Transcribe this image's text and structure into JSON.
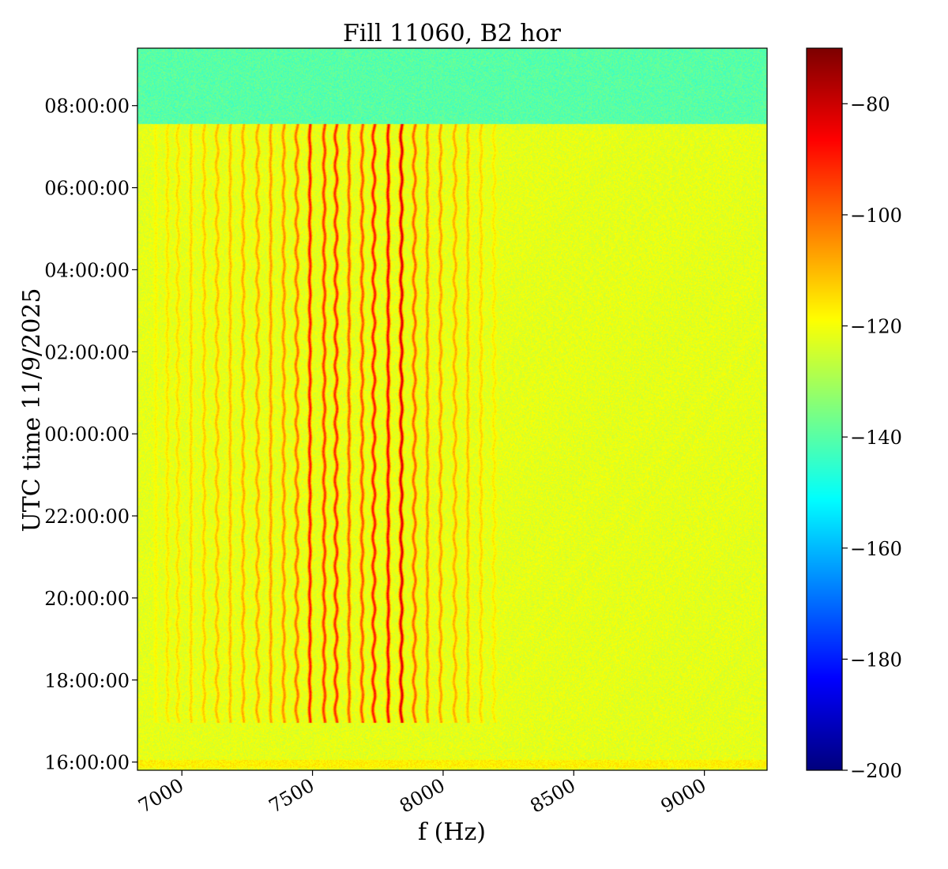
{
  "chart_data": {
    "type": "heatmap",
    "title": "Fill 11060, B2 hor",
    "xlabel": "f (Hz)",
    "ylabel": "UTC time 11/9/2025",
    "xlim": [
      6830,
      9240
    ],
    "x_ticks": [
      7000,
      7500,
      8000,
      8500,
      9000
    ],
    "x_tick_labels": [
      "7000",
      "7500",
      "8000",
      "8500",
      "9000"
    ],
    "ylim_hours": [
      15.8,
      33.4
    ],
    "y_ticks_hours": [
      16,
      18,
      20,
      22,
      24,
      26,
      28,
      30,
      32
    ],
    "y_tick_labels": [
      "16:00:00",
      "18:00:00",
      "20:00:00",
      "22:00:00",
      "00:00:00",
      "02:00:00",
      "04:00:00",
      "06:00:00",
      "08:00:00"
    ],
    "colorbar": {
      "colormap": "jet",
      "vmin": -200,
      "vmax": -70,
      "ticks": [
        -80,
        -100,
        -120,
        -140,
        -160,
        -180,
        -200
      ],
      "tick_labels": [
        "−80",
        "−100",
        "−120",
        "−140",
        "−160",
        "−180",
        "−200"
      ]
    },
    "background_level": -122,
    "beam_dump_hour": 31.55,
    "post_dump_level": -140,
    "lines_start_hour": 16.95,
    "lines": [
      {
        "f": 6900,
        "level": -118
      },
      {
        "f": 6945,
        "level": -115
      },
      {
        "f": 6985,
        "level": -114
      },
      {
        "f": 7035,
        "level": -113
      },
      {
        "f": 7085,
        "level": -112
      },
      {
        "f": 7135,
        "level": -110
      },
      {
        "f": 7185,
        "level": -110
      },
      {
        "f": 7235,
        "level": -108
      },
      {
        "f": 7290,
        "level": -107
      },
      {
        "f": 7340,
        "level": -106
      },
      {
        "f": 7390,
        "level": -104
      },
      {
        "f": 7440,
        "level": -100
      },
      {
        "f": 7490,
        "level": -88
      },
      {
        "f": 7545,
        "level": -92
      },
      {
        "f": 7590,
        "level": -90
      },
      {
        "f": 7640,
        "level": -98
      },
      {
        "f": 7690,
        "level": -96
      },
      {
        "f": 7735,
        "level": -88
      },
      {
        "f": 7790,
        "level": -85
      },
      {
        "f": 7840,
        "level": -80
      },
      {
        "f": 7890,
        "level": -98
      },
      {
        "f": 7940,
        "level": -104
      },
      {
        "f": 7990,
        "level": -106
      },
      {
        "f": 8045,
        "level": -108
      },
      {
        "f": 8095,
        "level": -110
      },
      {
        "f": 8145,
        "level": -113
      },
      {
        "f": 8195,
        "level": -116
      }
    ]
  }
}
